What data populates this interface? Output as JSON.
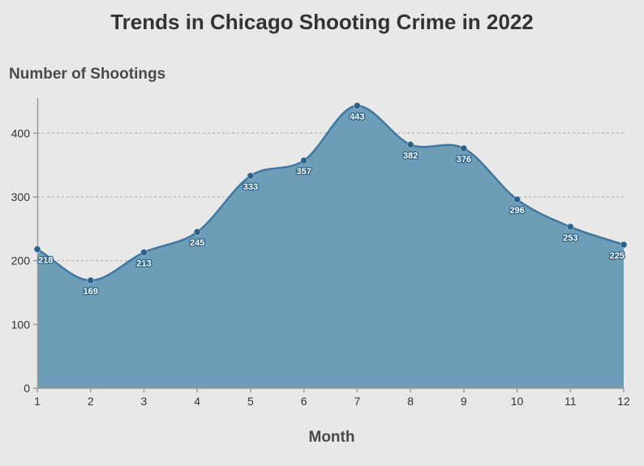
{
  "chart_data": {
    "type": "area",
    "title": "Trends in Chicago Shooting Crime in 2022",
    "xlabel": "Month",
    "ylabel": "Number of Shootings",
    "x": [
      1,
      2,
      3,
      4,
      5,
      6,
      7,
      8,
      9,
      10,
      11,
      12
    ],
    "series": [
      {
        "values": [
          218,
          169,
          213,
          245,
          333,
          357,
          443,
          382,
          376,
          296,
          253,
          225
        ]
      }
    ],
    "data_labels": [
      "218",
      "169",
      "213",
      "245",
      "333",
      "357",
      "443",
      "382",
      "376",
      "296",
      "253",
      "225"
    ],
    "xlim": [
      1,
      12
    ],
    "ylim": [
      0,
      455
    ],
    "y_ticks": [
      0,
      100,
      200,
      300,
      400
    ],
    "y_tick_labels": [
      "0",
      "100",
      "200",
      "300",
      "400"
    ],
    "x_tick_labels": [
      "1",
      "2",
      "3",
      "4",
      "5",
      "6",
      "7",
      "8",
      "9",
      "10",
      "11",
      "12"
    ],
    "grid": "horizontal dashed",
    "legend": "none",
    "colors": {
      "fill": "#6e9db8",
      "line": "#3f77a0",
      "point": "#2a6189",
      "background": "#e8e8e8"
    }
  }
}
